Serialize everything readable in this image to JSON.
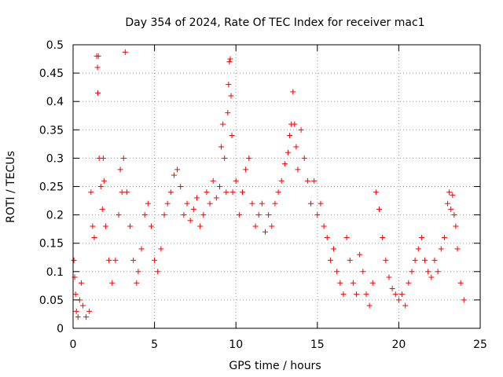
{
  "chart_data": {
    "type": "scatter",
    "title": "Day 354 of 2024, Rate Of TEC Index for receiver mac1",
    "xlabel": "GPS time / hours",
    "ylabel": "ROTI / TECUs",
    "xlim": [
      0,
      25
    ],
    "ylim": [
      0,
      0.5
    ],
    "xticks": [
      0,
      5,
      10,
      15,
      20,
      25
    ],
    "yticks": [
      0,
      0.05,
      0.1,
      0.15,
      0.2,
      0.25,
      0.3,
      0.35,
      0.4,
      0.45,
      0.5
    ],
    "xtick_labels": [
      "0",
      "5",
      "10",
      "15",
      "20",
      "25"
    ],
    "ytick_labels": [
      "0",
      "0.05",
      "0.1",
      "0.15",
      "0.2",
      "0.25",
      "0.3",
      "0.35",
      "0.4",
      "0.45",
      "0.5"
    ],
    "grid": true,
    "marker": "+",
    "marker_color": "#ff0000",
    "series": [
      {
        "values_note": "",
        "points": [
          [
            0.05,
            0.12
          ],
          [
            0.1,
            0.09
          ],
          [
            0.15,
            0.06
          ],
          [
            0.2,
            0.03
          ],
          [
            0.3,
            0.02
          ],
          [
            0.4,
            0.05
          ],
          [
            0.5,
            0.08
          ],
          [
            0.6,
            0.04
          ],
          [
            0.8,
            0.02
          ],
          [
            1.0,
            0.03
          ],
          [
            1.1,
            0.24
          ],
          [
            1.2,
            0.18
          ],
          [
            1.3,
            0.16
          ],
          [
            1.45,
            0.48
          ],
          [
            1.5,
            0.46
          ],
          [
            1.52,
            0.415
          ],
          [
            1.55,
            0.48
          ],
          [
            1.6,
            0.3
          ],
          [
            1.7,
            0.25
          ],
          [
            1.8,
            0.21
          ],
          [
            1.85,
            0.3
          ],
          [
            1.9,
            0.26
          ],
          [
            2.0,
            0.18
          ],
          [
            2.2,
            0.12
          ],
          [
            2.4,
            0.08
          ],
          [
            2.6,
            0.12
          ],
          [
            2.8,
            0.2
          ],
          [
            2.9,
            0.28
          ],
          [
            3.0,
            0.24
          ],
          [
            3.1,
            0.3
          ],
          [
            3.2,
            0.487
          ],
          [
            3.3,
            0.24
          ],
          [
            3.5,
            0.18
          ],
          [
            3.7,
            0.12
          ],
          [
            3.9,
            0.08
          ],
          [
            4.0,
            0.1
          ],
          [
            4.2,
            0.14
          ],
          [
            4.4,
            0.2
          ],
          [
            4.6,
            0.22
          ],
          [
            4.8,
            0.18
          ],
          [
            5.0,
            0.12
          ],
          [
            5.2,
            0.1
          ],
          [
            5.4,
            0.14
          ],
          [
            5.6,
            0.2
          ],
          [
            5.8,
            0.22
          ],
          [
            6.0,
            0.24
          ],
          [
            6.2,
            0.27
          ],
          [
            6.4,
            0.28
          ],
          [
            6.6,
            0.25
          ],
          [
            6.8,
            0.2
          ],
          [
            7.0,
            0.22
          ],
          [
            7.2,
            0.19
          ],
          [
            7.4,
            0.21
          ],
          [
            7.6,
            0.23
          ],
          [
            7.8,
            0.18
          ],
          [
            8.0,
            0.2
          ],
          [
            8.2,
            0.24
          ],
          [
            8.4,
            0.22
          ],
          [
            8.6,
            0.26
          ],
          [
            8.8,
            0.23
          ],
          [
            9.0,
            0.25
          ],
          [
            9.1,
            0.32
          ],
          [
            9.2,
            0.36
          ],
          [
            9.3,
            0.3
          ],
          [
            9.4,
            0.24
          ],
          [
            9.5,
            0.38
          ],
          [
            9.55,
            0.43
          ],
          [
            9.6,
            0.47
          ],
          [
            9.65,
            0.475
          ],
          [
            9.7,
            0.41
          ],
          [
            9.75,
            0.34
          ],
          [
            9.8,
            0.24
          ],
          [
            10.0,
            0.26
          ],
          [
            10.2,
            0.2
          ],
          [
            10.4,
            0.24
          ],
          [
            10.6,
            0.28
          ],
          [
            10.8,
            0.3
          ],
          [
            11.0,
            0.22
          ],
          [
            11.2,
            0.18
          ],
          [
            11.4,
            0.2
          ],
          [
            11.6,
            0.22
          ],
          [
            11.8,
            0.17
          ],
          [
            12.0,
            0.2
          ],
          [
            12.2,
            0.18
          ],
          [
            12.4,
            0.22
          ],
          [
            12.6,
            0.24
          ],
          [
            12.8,
            0.26
          ],
          [
            13.0,
            0.29
          ],
          [
            13.2,
            0.31
          ],
          [
            13.3,
            0.34
          ],
          [
            13.4,
            0.36
          ],
          [
            13.5,
            0.417
          ],
          [
            13.6,
            0.36
          ],
          [
            13.7,
            0.32
          ],
          [
            13.8,
            0.28
          ],
          [
            14.0,
            0.35
          ],
          [
            14.2,
            0.3
          ],
          [
            14.4,
            0.26
          ],
          [
            14.6,
            0.22
          ],
          [
            14.8,
            0.26
          ],
          [
            15.0,
            0.2
          ],
          [
            15.2,
            0.22
          ],
          [
            15.4,
            0.18
          ],
          [
            15.6,
            0.16
          ],
          [
            15.8,
            0.12
          ],
          [
            16.0,
            0.14
          ],
          [
            16.2,
            0.1
          ],
          [
            16.4,
            0.08
          ],
          [
            16.6,
            0.06
          ],
          [
            16.8,
            0.16
          ],
          [
            17.0,
            0.12
          ],
          [
            17.2,
            0.08
          ],
          [
            17.4,
            0.06
          ],
          [
            17.6,
            0.13
          ],
          [
            17.8,
            0.1
          ],
          [
            18.0,
            0.06
          ],
          [
            18.2,
            0.04
          ],
          [
            18.4,
            0.08
          ],
          [
            18.6,
            0.24
          ],
          [
            18.8,
            0.21
          ],
          [
            19.0,
            0.16
          ],
          [
            19.2,
            0.12
          ],
          [
            19.4,
            0.09
          ],
          [
            19.6,
            0.07
          ],
          [
            19.8,
            0.06
          ],
          [
            20.0,
            0.05
          ],
          [
            20.2,
            0.06
          ],
          [
            20.4,
            0.04
          ],
          [
            20.6,
            0.08
          ],
          [
            20.8,
            0.1
          ],
          [
            21.0,
            0.12
          ],
          [
            21.2,
            0.14
          ],
          [
            21.4,
            0.16
          ],
          [
            21.6,
            0.12
          ],
          [
            21.8,
            0.1
          ],
          [
            22.0,
            0.09
          ],
          [
            22.2,
            0.12
          ],
          [
            22.4,
            0.1
          ],
          [
            22.6,
            0.14
          ],
          [
            22.8,
            0.16
          ],
          [
            23.0,
            0.22
          ],
          [
            23.1,
            0.24
          ],
          [
            23.2,
            0.21
          ],
          [
            23.3,
            0.235
          ],
          [
            23.4,
            0.2
          ],
          [
            23.5,
            0.18
          ],
          [
            23.6,
            0.14
          ],
          [
            23.8,
            0.08
          ],
          [
            24.0,
            0.05
          ]
        ]
      }
    ]
  }
}
